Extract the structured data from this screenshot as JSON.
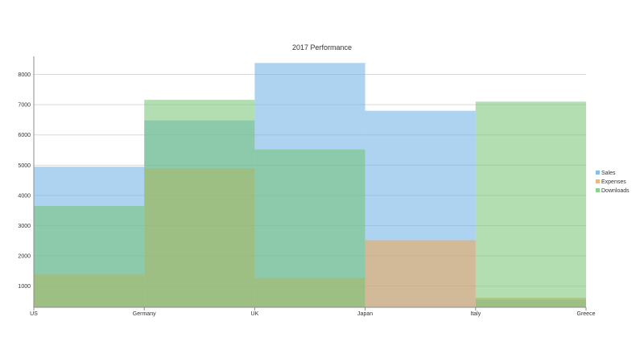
{
  "chart_data": {
    "type": "area",
    "subtype": "step",
    "title": "2017 Performance",
    "xlabel": "",
    "ylabel": "",
    "categories": [
      "US",
      "Germany",
      "UK",
      "Japan",
      "Italy",
      "Greece"
    ],
    "ylim": [
      300,
      8600
    ],
    "yticks": [
      1000,
      2000,
      3000,
      4000,
      5000,
      6000,
      7000,
      8000
    ],
    "grid": true,
    "legend_position": "right",
    "series": [
      {
        "name": "Sales",
        "color": "#6baee3",
        "values": [
          4950,
          6480,
          8380,
          6800,
          560,
          560
        ]
      },
      {
        "name": "Expenses",
        "color": "#f0a552",
        "values": [
          1400,
          4900,
          1270,
          2520,
          620,
          620
        ]
      },
      {
        "name": "Downloads",
        "color": "#72c272",
        "values": [
          3650,
          7160,
          5520,
          300,
          7100,
          7100
        ]
      }
    ]
  }
}
